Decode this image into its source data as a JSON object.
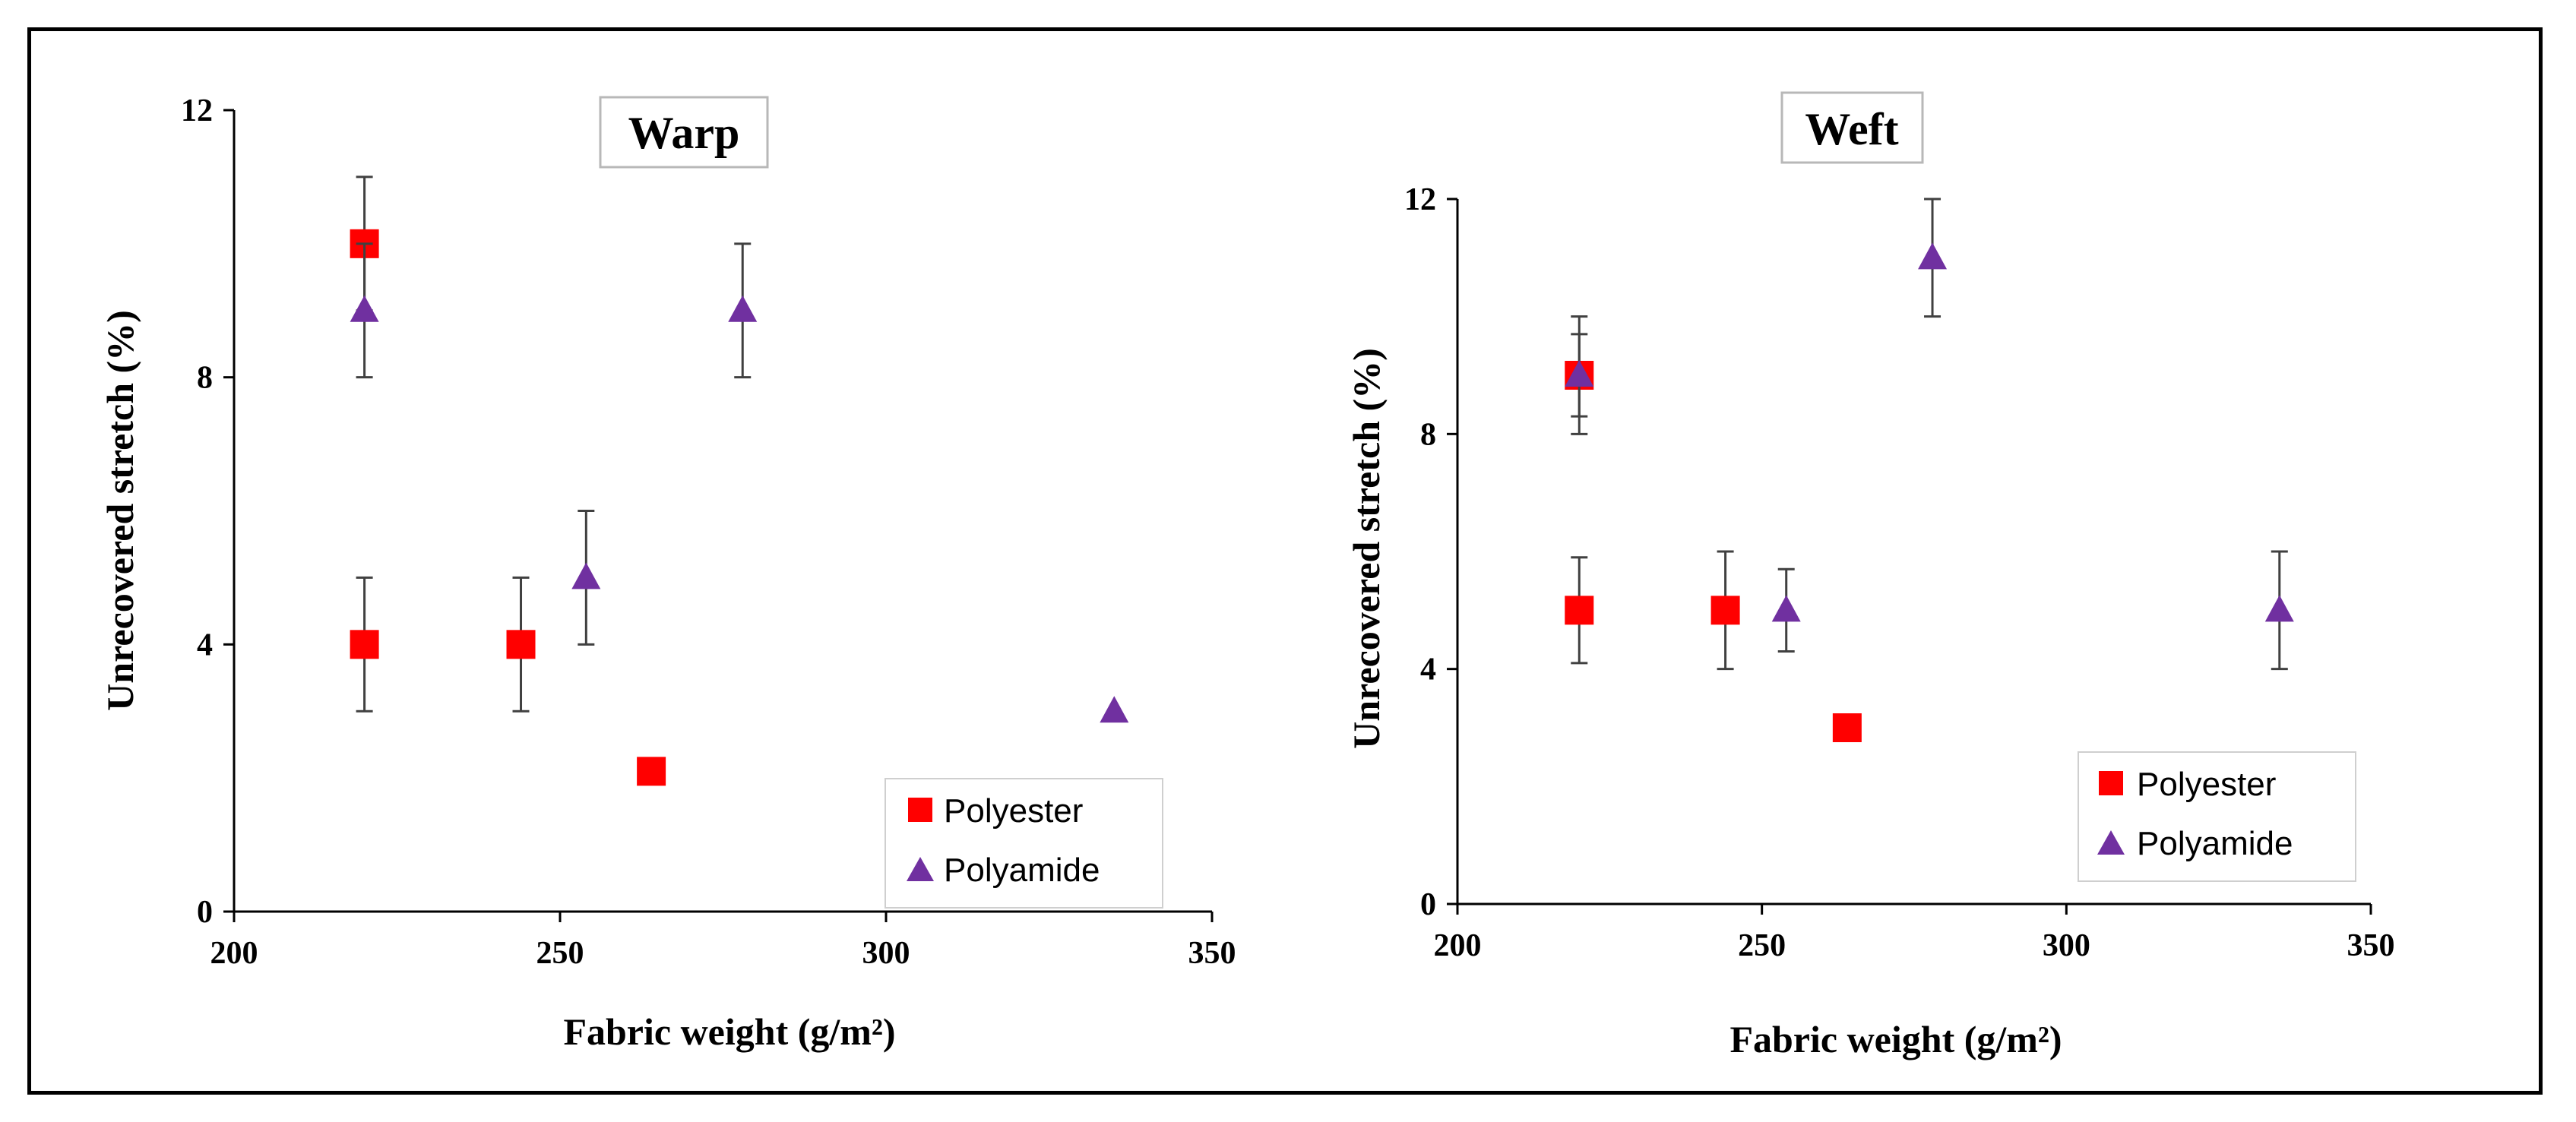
{
  "chart_data": [
    {
      "type": "scatter",
      "title": "Warp",
      "xlabel": "Fabric weight (g/m²)",
      "ylabel": "Unrecovered stretch (%)",
      "xlim": [
        200,
        350
      ],
      "ylim": [
        0,
        12
      ],
      "xticks": [
        200,
        250,
        300,
        350
      ],
      "yticks": [
        0,
        4,
        8,
        12
      ],
      "legend_position": "bottom-right",
      "series": [
        {
          "name": "Polyester",
          "marker": "square",
          "color": "#ff0000",
          "points": [
            {
              "x": 220,
              "y": 10,
              "err": 1
            },
            {
              "x": 220,
              "y": 4,
              "err": 1
            },
            {
              "x": 244,
              "y": 4,
              "err": 1
            },
            {
              "x": 264,
              "y": 2.1,
              "err": 0
            }
          ]
        },
        {
          "name": "Polyamide",
          "marker": "triangle",
          "color": "#7030a0",
          "points": [
            {
              "x": 220,
              "y": 9,
              "err": 1
            },
            {
              "x": 254,
              "y": 5,
              "err": 1
            },
            {
              "x": 278,
              "y": 9,
              "err": 1
            },
            {
              "x": 335,
              "y": 3,
              "err": 0
            }
          ]
        }
      ]
    },
    {
      "type": "scatter",
      "title": "Weft",
      "xlabel": "Fabric weight (g/m²)",
      "ylabel": "Unrecovered stretch (%)",
      "xlim": [
        200,
        350
      ],
      "ylim": [
        0,
        12
      ],
      "xticks": [
        200,
        250,
        300,
        350
      ],
      "yticks": [
        0,
        4,
        8,
        12
      ],
      "legend_position": "bottom-right",
      "series": [
        {
          "name": "Polyester",
          "marker": "square",
          "color": "#ff0000",
          "points": [
            {
              "x": 220,
              "y": 9,
              "err": 0.7
            },
            {
              "x": 220,
              "y": 5,
              "err": 0.9
            },
            {
              "x": 244,
              "y": 5,
              "err": 1
            },
            {
              "x": 264,
              "y": 3,
              "err": 0
            }
          ]
        },
        {
          "name": "Polyamide",
          "marker": "triangle",
          "color": "#7030a0",
          "points": [
            {
              "x": 220,
              "y": 9,
              "err": 1
            },
            {
              "x": 254,
              "y": 5,
              "err": 0.7
            },
            {
              "x": 278,
              "y": 11,
              "err": 1
            },
            {
              "x": 335,
              "y": 5,
              "err": 1
            }
          ]
        }
      ]
    }
  ]
}
